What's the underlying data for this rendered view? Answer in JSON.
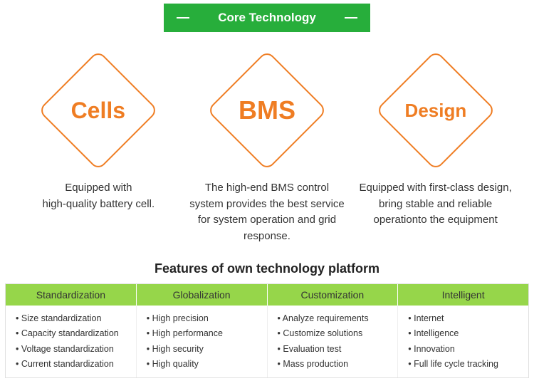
{
  "header": {
    "title": "Core Technology",
    "bg_color": "#27ae3b",
    "text_color": "#ffffff"
  },
  "diamonds": {
    "border_color": "#ef7d23",
    "text_color": "#ef7d23",
    "items": [
      {
        "label": "Cells",
        "font_size": 32,
        "desc": "Equipped with\nhigh-quality battery cell."
      },
      {
        "label": "BMS",
        "font_size": 36,
        "desc": "The high-end BMS control system provides the best service for system operation and grid response."
      },
      {
        "label": "Design",
        "font_size": 26,
        "desc": "Equipped with first-class design, bring stable and reliable operationto the equipment"
      }
    ]
  },
  "features": {
    "title": "Features of own technology platform",
    "header_bg": "#96d64a",
    "columns": [
      {
        "header": "Standardization",
        "items": [
          "Size standardization",
          "Capacity standardization",
          "Voltage standardization",
          "Current standardization"
        ]
      },
      {
        "header": "Globalization",
        "items": [
          "High precision",
          "High performance",
          "High security",
          "High quality"
        ]
      },
      {
        "header": "Customization",
        "items": [
          "Analyze requirements",
          "Customize  solutions",
          "Evaluation test",
          "Mass production"
        ]
      },
      {
        "header": "Intelligent",
        "items": [
          "Internet",
          "Intelligence",
          "Innovation",
          "Full life cycle tracking"
        ]
      }
    ]
  }
}
